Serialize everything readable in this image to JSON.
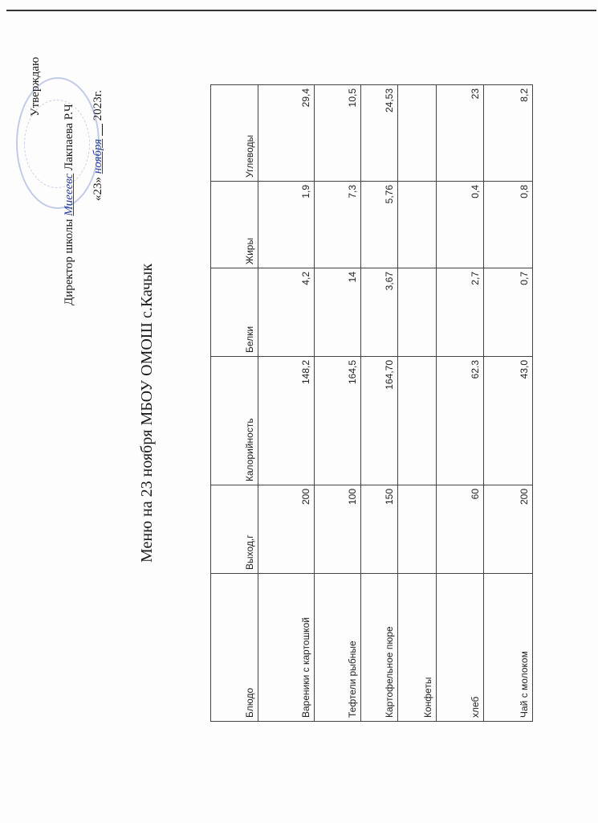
{
  "approval": {
    "approve": "Утверждаю",
    "director_label": "Директор школы",
    "director_signature": "Миееевс",
    "director_name": "Лакпаева Р.Ч",
    "date_open": "«23»",
    "date_month": "ноября",
    "date_year": "2023г."
  },
  "stamp_color": "#506ebe",
  "title": "Меню на 23 ноября  МБОУ ОМОШ с.Качык",
  "table": {
    "headers": [
      "Блюдо",
      "Выход,г",
      "Калорийность",
      "Белки",
      "Жиры",
      "Углеводы"
    ],
    "rows": [
      [
        "Вареники с картошкой",
        "200",
        "148,2",
        "4,2",
        "1,9",
        "29,4"
      ],
      [
        "Тефтели рыбные",
        "100",
        "164,5",
        "14",
        "7,3",
        "10,5"
      ],
      [
        "Картофельное пюре",
        "150",
        "164,70",
        "3,67",
        "5,76",
        "24,53"
      ],
      [
        "Конфеты",
        "",
        "",
        "",
        "",
        ""
      ],
      [
        "хлеб",
        "60",
        "62.3",
        "2,7",
        "0,4",
        "23"
      ],
      [
        "Чай с молоком",
        "200",
        "43,0",
        "0,7",
        "0,8",
        "8,2"
      ]
    ]
  }
}
